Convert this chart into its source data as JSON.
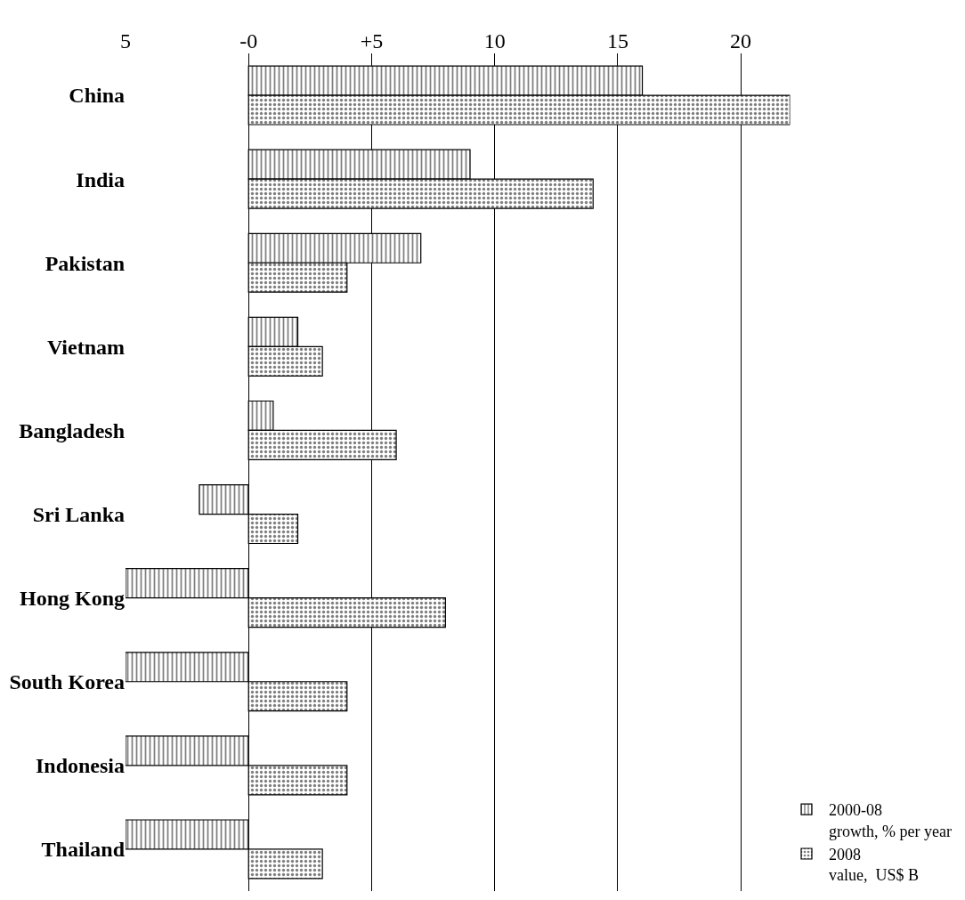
{
  "chart_data": {
    "type": "bar",
    "orientation": "horizontal",
    "categories": [
      "China",
      "India",
      "Pakistan",
      "Vietnam",
      "Bangladesh",
      "Sri Lanka",
      "Hong Kong",
      "South Korea",
      "Indonesia",
      "Thailand"
    ],
    "series": [
      {
        "name": "2000-08\ngrowth, % per year",
        "color": "#000000",
        "values": [
          16,
          9,
          7,
          2,
          1,
          -2,
          -5,
          -5,
          -5,
          -5
        ]
      },
      {
        "name": "2008\nvalue,  US$ B",
        "color": "#000000",
        "values": [
          22,
          14,
          4,
          3,
          6,
          2,
          8,
          4,
          4,
          3
        ]
      }
    ],
    "xlim": [
      -5,
      22
    ],
    "xticks": [
      {
        "value": -5,
        "label": "5"
      },
      {
        "value": 0,
        "label": "-0"
      },
      {
        "value": 5,
        "label": "+5"
      },
      10,
      15,
      20
    ],
    "grid": "x",
    "legend": "bottom right"
  }
}
